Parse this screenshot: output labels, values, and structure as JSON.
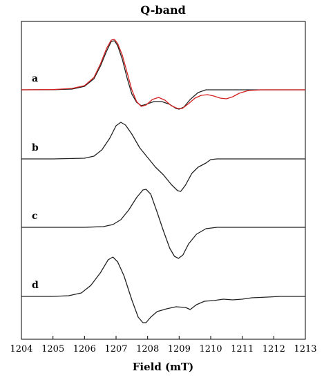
{
  "chart_data": {
    "type": "line",
    "title": "Q-band",
    "xlabel": "Field (mT)",
    "ylabel": "",
    "xlim": [
      1204,
      1213
    ],
    "xticks": [
      1204,
      1205,
      1206,
      1207,
      1208,
      1209,
      1210,
      1211,
      1212,
      1213
    ],
    "grid": false,
    "series": [
      {
        "name": "a",
        "color": "#222222",
        "points": [
          [
            1204.0,
            0.0
          ],
          [
            1205.0,
            0.002
          ],
          [
            1205.6,
            0.01
          ],
          [
            1206.0,
            0.05
          ],
          [
            1206.3,
            0.16
          ],
          [
            1206.5,
            0.34
          ],
          [
            1206.7,
            0.56
          ],
          [
            1206.85,
            0.7
          ],
          [
            1206.95,
            0.71
          ],
          [
            1207.05,
            0.64
          ],
          [
            1207.2,
            0.44
          ],
          [
            1207.35,
            0.17
          ],
          [
            1207.5,
            -0.06
          ],
          [
            1207.65,
            -0.18
          ],
          [
            1207.8,
            -0.23
          ],
          [
            1207.95,
            -0.21
          ],
          [
            1208.2,
            -0.17
          ],
          [
            1208.45,
            -0.17
          ],
          [
            1208.7,
            -0.21
          ],
          [
            1208.9,
            -0.27
          ],
          [
            1209.0,
            -0.28
          ],
          [
            1209.15,
            -0.25
          ],
          [
            1209.35,
            -0.14
          ],
          [
            1209.6,
            -0.04
          ],
          [
            1209.85,
            0.0
          ],
          [
            1210.5,
            0.0
          ],
          [
            1213.0,
            0.0
          ]
        ]
      },
      {
        "name": "a",
        "color": "#d42020",
        "points": [
          [
            1204.0,
            0.0
          ],
          [
            1205.0,
            0.004
          ],
          [
            1205.6,
            0.02
          ],
          [
            1206.0,
            0.06
          ],
          [
            1206.3,
            0.18
          ],
          [
            1206.5,
            0.37
          ],
          [
            1206.7,
            0.6
          ],
          [
            1206.85,
            0.72
          ],
          [
            1206.95,
            0.73
          ],
          [
            1207.05,
            0.67
          ],
          [
            1207.2,
            0.5
          ],
          [
            1207.35,
            0.25
          ],
          [
            1207.5,
            0.0
          ],
          [
            1207.65,
            -0.17
          ],
          [
            1207.8,
            -0.24
          ],
          [
            1207.95,
            -0.22
          ],
          [
            1208.15,
            -0.14
          ],
          [
            1208.35,
            -0.11
          ],
          [
            1208.55,
            -0.15
          ],
          [
            1208.75,
            -0.23
          ],
          [
            1208.95,
            -0.27
          ],
          [
            1209.1,
            -0.27
          ],
          [
            1209.3,
            -0.2
          ],
          [
            1209.5,
            -0.12
          ],
          [
            1209.7,
            -0.08
          ],
          [
            1209.9,
            -0.07
          ],
          [
            1210.1,
            -0.09
          ],
          [
            1210.3,
            -0.12
          ],
          [
            1210.5,
            -0.13
          ],
          [
            1210.7,
            -0.1
          ],
          [
            1210.9,
            -0.05
          ],
          [
            1211.2,
            -0.01
          ],
          [
            1211.6,
            0.0
          ],
          [
            1213.0,
            0.0
          ]
        ]
      },
      {
        "name": "b",
        "color": "#222222",
        "points": [
          [
            1204.0,
            0.0
          ],
          [
            1205.0,
            0.0
          ],
          [
            1206.0,
            0.01
          ],
          [
            1206.3,
            0.04
          ],
          [
            1206.55,
            0.13
          ],
          [
            1206.8,
            0.3
          ],
          [
            1207.0,
            0.48
          ],
          [
            1207.15,
            0.53
          ],
          [
            1207.3,
            0.49
          ],
          [
            1207.5,
            0.36
          ],
          [
            1207.75,
            0.16
          ],
          [
            1208.0,
            0.02
          ],
          [
            1208.25,
            -0.12
          ],
          [
            1208.5,
            -0.23
          ],
          [
            1208.75,
            -0.37
          ],
          [
            1208.95,
            -0.46
          ],
          [
            1209.05,
            -0.47
          ],
          [
            1209.2,
            -0.38
          ],
          [
            1209.4,
            -0.21
          ],
          [
            1209.6,
            -0.12
          ],
          [
            1209.85,
            -0.06
          ],
          [
            1210.0,
            -0.01
          ],
          [
            1210.2,
            0.0
          ],
          [
            1213.0,
            0.0
          ]
        ]
      },
      {
        "name": "c",
        "color": "#222222",
        "points": [
          [
            1204.0,
            0.0
          ],
          [
            1206.0,
            0.0
          ],
          [
            1206.6,
            0.01
          ],
          [
            1206.9,
            0.04
          ],
          [
            1207.15,
            0.11
          ],
          [
            1207.4,
            0.25
          ],
          [
            1207.65,
            0.43
          ],
          [
            1207.85,
            0.54
          ],
          [
            1207.95,
            0.55
          ],
          [
            1208.1,
            0.48
          ],
          [
            1208.3,
            0.22
          ],
          [
            1208.5,
            -0.05
          ],
          [
            1208.7,
            -0.3
          ],
          [
            1208.85,
            -0.42
          ],
          [
            1208.98,
            -0.45
          ],
          [
            1209.12,
            -0.4
          ],
          [
            1209.3,
            -0.24
          ],
          [
            1209.55,
            -0.1
          ],
          [
            1209.85,
            -0.02
          ],
          [
            1210.2,
            0.0
          ],
          [
            1213.0,
            0.0
          ]
        ]
      },
      {
        "name": "d",
        "color": "#222222",
        "points": [
          [
            1204.0,
            0.0
          ],
          [
            1205.0,
            0.0
          ],
          [
            1205.5,
            0.01
          ],
          [
            1205.9,
            0.05
          ],
          [
            1206.2,
            0.16
          ],
          [
            1206.5,
            0.34
          ],
          [
            1206.75,
            0.53
          ],
          [
            1206.9,
            0.57
          ],
          [
            1207.05,
            0.5
          ],
          [
            1207.25,
            0.3
          ],
          [
            1207.5,
            -0.05
          ],
          [
            1207.7,
            -0.3
          ],
          [
            1207.85,
            -0.38
          ],
          [
            1207.95,
            -0.38
          ],
          [
            1208.1,
            -0.3
          ],
          [
            1208.3,
            -0.22
          ],
          [
            1208.6,
            -0.18
          ],
          [
            1208.9,
            -0.15
          ],
          [
            1209.2,
            -0.16
          ],
          [
            1209.35,
            -0.19
          ],
          [
            1209.55,
            -0.12
          ],
          [
            1209.8,
            -0.07
          ],
          [
            1210.1,
            -0.06
          ],
          [
            1210.4,
            -0.04
          ],
          [
            1210.7,
            -0.05
          ],
          [
            1211.0,
            -0.04
          ],
          [
            1211.3,
            -0.02
          ],
          [
            1211.8,
            -0.01
          ],
          [
            1212.2,
            0.0
          ],
          [
            1213.0,
            0.0
          ]
        ]
      }
    ]
  }
}
